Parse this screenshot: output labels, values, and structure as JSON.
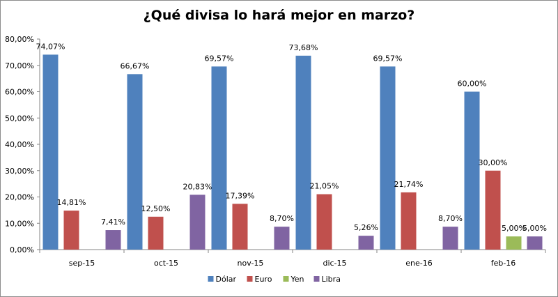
{
  "chart_data": {
    "type": "bar",
    "title": "¿Qué divisa lo hará mejor en marzo?",
    "categories": [
      "sep-15",
      "oct-15",
      "nov-15",
      "dic-15",
      "ene-16",
      "feb-16"
    ],
    "series": [
      {
        "name": "Dólar",
        "color": "#4f81bd",
        "values": [
          74.07,
          66.67,
          69.57,
          73.68,
          69.57,
          60.0
        ],
        "labels": [
          "74,07%",
          "66,67%",
          "69,57%",
          "73,68%",
          "69,57%",
          "60,00%"
        ]
      },
      {
        "name": "Euro",
        "color": "#c0504d",
        "values": [
          14.81,
          12.5,
          17.39,
          21.05,
          21.74,
          30.0
        ],
        "labels": [
          "14,81%",
          "12,50%",
          "17,39%",
          "21,05%",
          "21,74%",
          "30,00%"
        ]
      },
      {
        "name": "Yen",
        "color": "#9bbb59",
        "values": [
          null,
          null,
          null,
          null,
          null,
          5.0
        ],
        "labels": [
          "",
          "",
          "",
          "",
          "",
          "5,00%"
        ]
      },
      {
        "name": "Libra",
        "color": "#8064a2",
        "values": [
          7.41,
          20.83,
          8.7,
          5.26,
          8.7,
          5.0
        ],
        "labels": [
          "7,41%",
          "20,83%",
          "8,70%",
          "5,26%",
          "8,70%",
          "5,00%"
        ]
      }
    ],
    "ylim": [
      0,
      80
    ],
    "yticks": [
      0,
      10,
      20,
      30,
      40,
      50,
      60,
      70,
      80
    ],
    "ytick_labels": [
      "0,00%",
      "10,00%",
      "20,00%",
      "30,00%",
      "40,00%",
      "50,00%",
      "60,00%",
      "70,00%",
      "80,00%"
    ],
    "xlabel": "",
    "ylabel": "",
    "grid": false,
    "legend_position": "bottom"
  }
}
